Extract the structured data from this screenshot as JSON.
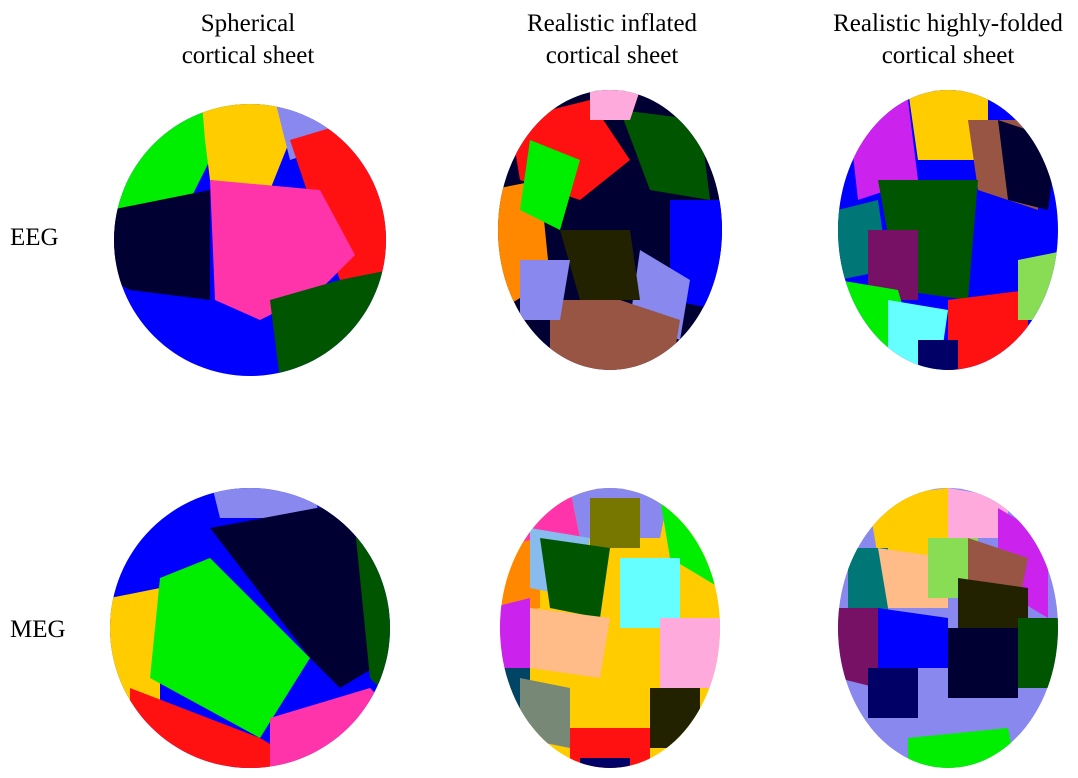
{
  "columns": [
    {
      "line1": "Spherical",
      "line2": "cortical sheet"
    },
    {
      "line1": "Realistic inflated",
      "line2": "cortical sheet"
    },
    {
      "line1": "Realistic highly-folded",
      "line2": "cortical sheet"
    }
  ],
  "rows": [
    {
      "label": "EEG"
    },
    {
      "label": "MEG"
    }
  ],
  "colors": {
    "green": "#00ee00",
    "yellow": "#ffcc00",
    "lavender": "#8888ee",
    "red": "#ff1111",
    "navy": "#000033",
    "pink": "#ff33aa",
    "blue": "#0000ff",
    "darkgreen": "#005500",
    "teal": "#007777",
    "purple": "#771166",
    "brown": "#995544",
    "olive": "#777700",
    "cyan": "#66ffff",
    "peach": "#ffbb88",
    "lightgreen": "#88dd55",
    "magenta": "#cc22ee",
    "orange": "#ff8800",
    "lightpink": "#ffaadd",
    "gray": "#778877",
    "darkteal": "#004466",
    "dark": "#222200",
    "dots": "#ffcc88"
  }
}
